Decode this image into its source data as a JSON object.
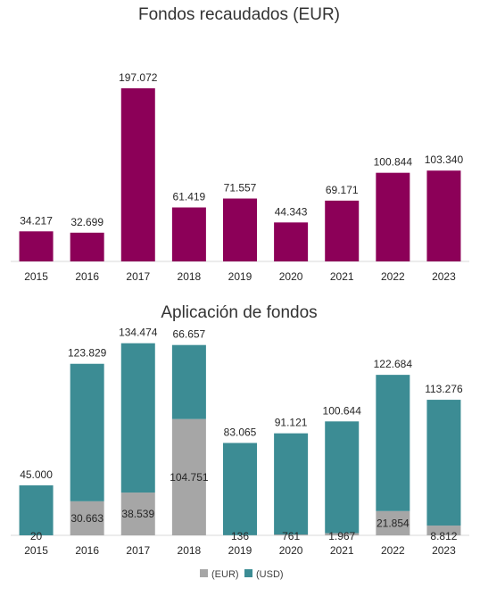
{
  "chart_data": [
    {
      "type": "bar",
      "title": "Fondos recaudados (EUR)",
      "categories": [
        "2015",
        "2016",
        "2017",
        "2018",
        "2019",
        "2020",
        "2021",
        "2022",
        "2023"
      ],
      "values": [
        34217,
        32699,
        197072,
        61419,
        71557,
        44343,
        69171,
        100844,
        103340
      ],
      "value_labels": [
        "34.217",
        "32.699",
        "197.072",
        "61.419",
        "71.557",
        "44.343",
        "69.171",
        "100.844",
        "103.340"
      ],
      "color": "#8c0058",
      "ylim": [
        0,
        200000
      ],
      "grid": false
    },
    {
      "type": "bar",
      "stacked": true,
      "title": "Aplicación de fondos",
      "categories": [
        "2015",
        "2016",
        "2017",
        "2018",
        "2019",
        "2020",
        "2021",
        "2022",
        "2023"
      ],
      "series": [
        {
          "name": "(EUR)",
          "color": "#a6a6a6",
          "values": [
            20,
            30663,
            38539,
            104751,
            136,
            761,
            1967,
            21854,
            8812
          ],
          "value_labels": [
            "20",
            "30.663",
            "38.539",
            "104.751",
            "136",
            "761",
            "1.967",
            "21.854",
            "8.812"
          ]
        },
        {
          "name": "(USD)",
          "color": "#3c8c94",
          "values": [
            45000,
            123829,
            134474,
            66657,
            83065,
            91121,
            100644,
            122684,
            113276
          ],
          "value_labels": [
            "45.000",
            "123.829",
            "134.474",
            "66.657",
            "83.065",
            "91.121",
            "100.644",
            "122.684",
            "113.276"
          ]
        }
      ],
      "ylim": [
        0,
        180000
      ],
      "legend": "bottom",
      "grid": false
    }
  ]
}
